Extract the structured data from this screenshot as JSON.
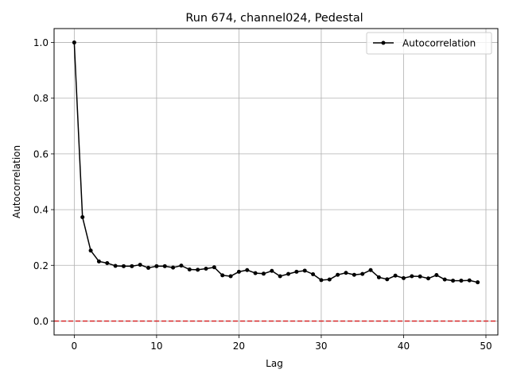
{
  "chart_data": {
    "type": "line",
    "title": "Run 674, channel024, Pedestal",
    "xlabel": "Lag",
    "ylabel": "Autocorrelation",
    "xlim": [
      -2.45,
      51.45
    ],
    "ylim": [
      -0.05,
      1.05
    ],
    "xticks": [
      0,
      10,
      20,
      30,
      40,
      50
    ],
    "yticks": [
      0.0,
      0.2,
      0.4,
      0.6,
      0.8,
      1.0
    ],
    "xtick_labels": [
      "0",
      "10",
      "20",
      "30",
      "40",
      "50"
    ],
    "ytick_labels": [
      "0.0",
      "0.2",
      "0.4",
      "0.6",
      "0.8",
      "1.0"
    ],
    "grid": true,
    "legend_position": "upper right",
    "series": [
      {
        "name": "Autocorrelation",
        "color": "#000000",
        "marker": "circle",
        "x": [
          0,
          1,
          2,
          3,
          4,
          5,
          6,
          7,
          8,
          9,
          10,
          11,
          12,
          13,
          14,
          15,
          16,
          17,
          18,
          19,
          20,
          21,
          22,
          23,
          24,
          25,
          26,
          27,
          28,
          29,
          30,
          31,
          32,
          33,
          34,
          35,
          36,
          37,
          38,
          39,
          40,
          41,
          42,
          43,
          44,
          45,
          46,
          47,
          48,
          49
        ],
        "y": [
          1.0,
          0.373,
          0.253,
          0.214,
          0.208,
          0.198,
          0.197,
          0.197,
          0.202,
          0.191,
          0.197,
          0.197,
          0.192,
          0.199,
          0.185,
          0.184,
          0.188,
          0.193,
          0.164,
          0.161,
          0.177,
          0.183,
          0.172,
          0.17,
          0.18,
          0.161,
          0.169,
          0.177,
          0.181,
          0.168,
          0.147,
          0.149,
          0.166,
          0.173,
          0.166,
          0.169,
          0.183,
          0.157,
          0.15,
          0.163,
          0.154,
          0.161,
          0.16,
          0.153,
          0.165,
          0.149,
          0.145,
          0.145,
          0.146,
          0.139
        ]
      }
    ],
    "reference_lines": [
      {
        "orientation": "horizontal",
        "y": 0.0,
        "color": "#d62728",
        "style": "dashed"
      }
    ]
  }
}
